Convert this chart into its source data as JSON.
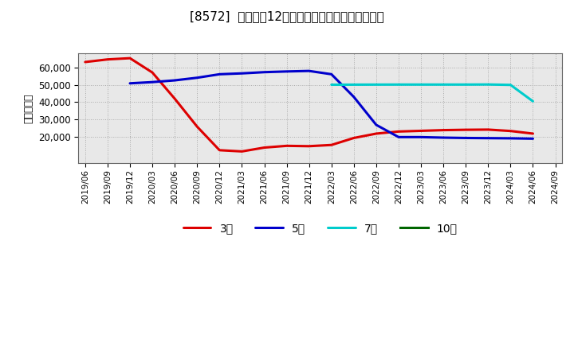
{
  "title": "[8572]  経常利益12か月移動合計の標準偏差の推移",
  "ylabel": "（百万円）",
  "background_color": "#ffffff",
  "plot_bg_color": "#e8e8e8",
  "grid_color": "#aaaaaa",
  "ylim": [
    5000,
    68000
  ],
  "yticks": [
    20000,
    30000,
    40000,
    50000,
    60000
  ],
  "series": {
    "3年": {
      "color": "#dd0000",
      "dates": [
        "2019/06",
        "2019/09",
        "2019/12",
        "2020/03",
        "2020/06",
        "2020/09",
        "2020/12",
        "2021/03",
        "2021/06",
        "2021/09",
        "2021/12",
        "2022/03",
        "2022/06",
        "2022/09",
        "2022/12",
        "2023/03",
        "2023/06",
        "2023/09",
        "2023/12",
        "2024/03",
        "2024/06"
      ],
      "values": [
        63000,
        64500,
        65200,
        57000,
        42000,
        26000,
        12500,
        11800,
        14000,
        15000,
        14800,
        15500,
        19500,
        22000,
        23200,
        23600,
        24000,
        24200,
        24300,
        23500,
        22000
      ]
    },
    "5年": {
      "color": "#0000cc",
      "dates": [
        "2019/12",
        "2020/03",
        "2020/06",
        "2020/09",
        "2020/12",
        "2021/03",
        "2021/06",
        "2021/09",
        "2021/12",
        "2022/03",
        "2022/06",
        "2022/09",
        "2022/12",
        "2023/03",
        "2023/06",
        "2023/09",
        "2023/12",
        "2024/03",
        "2024/06"
      ],
      "values": [
        50800,
        51500,
        52500,
        54000,
        56000,
        56500,
        57200,
        57600,
        57900,
        56000,
        43000,
        27000,
        20000,
        20000,
        19700,
        19500,
        19400,
        19300,
        19100
      ]
    },
    "7年": {
      "color": "#00cccc",
      "dates": [
        "2022/03",
        "2022/06",
        "2022/09",
        "2022/12",
        "2023/03",
        "2023/06",
        "2023/09",
        "2023/12",
        "2024/03",
        "2024/06"
      ],
      "values": [
        50000,
        50050,
        50080,
        50100,
        50100,
        50100,
        50100,
        50150,
        49900,
        40500
      ]
    },
    "10年": {
      "color": "#006600",
      "dates": [],
      "values": []
    }
  },
  "xtick_labels": [
    "2019/06",
    "2019/09",
    "2019/12",
    "2020/03",
    "2020/06",
    "2020/09",
    "2020/12",
    "2021/03",
    "2021/06",
    "2021/09",
    "2021/12",
    "2022/03",
    "2022/06",
    "2022/09",
    "2022/12",
    "2023/03",
    "2023/06",
    "2023/09",
    "2023/12",
    "2024/03",
    "2024/06",
    "2024/09"
  ],
  "legend_labels": [
    "3年",
    "5年",
    "7年",
    "10年"
  ]
}
